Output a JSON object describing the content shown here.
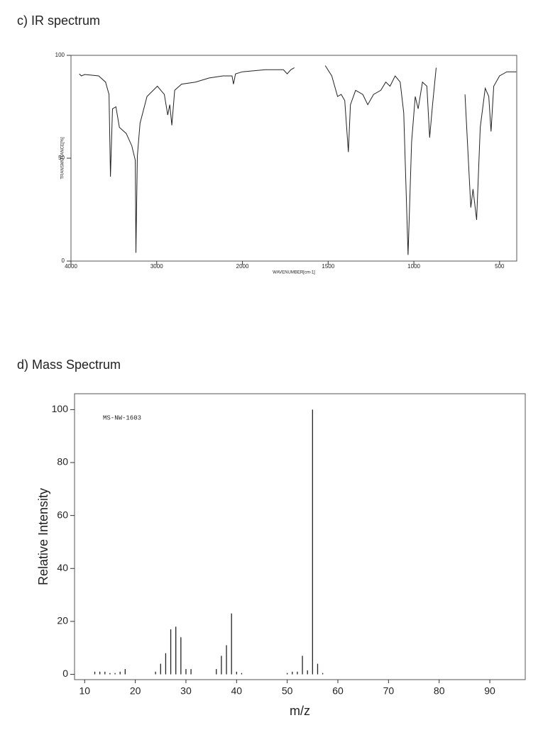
{
  "chart_data": [
    {
      "type": "line",
      "title": "c) IR spectrum",
      "xlabel": "WAVENUMBER[cm-1]",
      "ylabel": "TRANSMITTANCE[%]",
      "xlim": [
        4000,
        400
      ],
      "ylim": [
        0,
        100
      ],
      "xticks": [
        4000,
        3000,
        2000,
        1500,
        1000,
        500
      ],
      "yticks": [
        0,
        50,
        100
      ],
      "color": "#222222",
      "x": [
        3903,
        3879,
        3839,
        3677,
        3597,
        3556,
        3540,
        3516,
        3476,
        3435,
        3355,
        3290,
        3250,
        3242,
        3226,
        3194,
        3113,
        2992,
        2911,
        2871,
        2847,
        2823,
        2790,
        2710,
        2548,
        2387,
        2226,
        2121,
        2105,
        2081,
        2000,
        1866,
        1761,
        1739,
        1718,
        1697,
        1600,
        1517,
        1479,
        1445,
        1424,
        1403,
        1382,
        1370,
        1340,
        1298,
        1269,
        1235,
        1193,
        1164,
        1139,
        1109,
        1080,
        1059,
        1034,
        1013,
        992,
        975,
        950,
        924,
        908,
        891,
        870,
        800,
        702,
        668,
        655,
        634,
        613,
        584,
        563,
        550,
        534,
        500,
        458,
        403
      ],
      "values": [
        91,
        90,
        90.7,
        90,
        87,
        81,
        41,
        74,
        75,
        65,
        62,
        56,
        49,
        4,
        51,
        67,
        80,
        85,
        81,
        71,
        76,
        66,
        83,
        86,
        87,
        89,
        90,
        90,
        86,
        91,
        92,
        93,
        93,
        91,
        93,
        94,
        null,
        95,
        90,
        80,
        81,
        78,
        53,
        76,
        83,
        81,
        76,
        81,
        83,
        87,
        85,
        90,
        87,
        72,
        3,
        58,
        80,
        74,
        87,
        85,
        60,
        76,
        94,
        null,
        81,
        26,
        35,
        20,
        65,
        84,
        80,
        63,
        85,
        90,
        92,
        92
      ]
    },
    {
      "type": "bar",
      "title": "d) Mass Spectrum",
      "annotation": "MS-NW-1603",
      "xlabel": "m/z",
      "ylabel": "Relative Intensity",
      "xlim": [
        8,
        97
      ],
      "ylim": [
        -2,
        106
      ],
      "xticks": [
        10,
        20,
        30,
        40,
        50,
        60,
        70,
        80,
        90
      ],
      "yticks": [
        0,
        20,
        40,
        60,
        80,
        100
      ],
      "color": "#222222",
      "x": [
        12,
        13,
        14,
        15,
        16,
        17,
        18,
        24,
        25,
        26,
        27,
        28,
        29,
        30,
        31,
        36,
        37,
        38,
        39,
        40,
        41,
        50,
        51,
        52,
        53,
        54,
        55,
        56,
        57
      ],
      "values": [
        1,
        1,
        1,
        0.5,
        0.5,
        1,
        2,
        1,
        4,
        8,
        17,
        18,
        14,
        2,
        2,
        2,
        7,
        11,
        23,
        1,
        0.5,
        0.5,
        1,
        1,
        7,
        1.5,
        100,
        4,
        0.5
      ]
    }
  ]
}
